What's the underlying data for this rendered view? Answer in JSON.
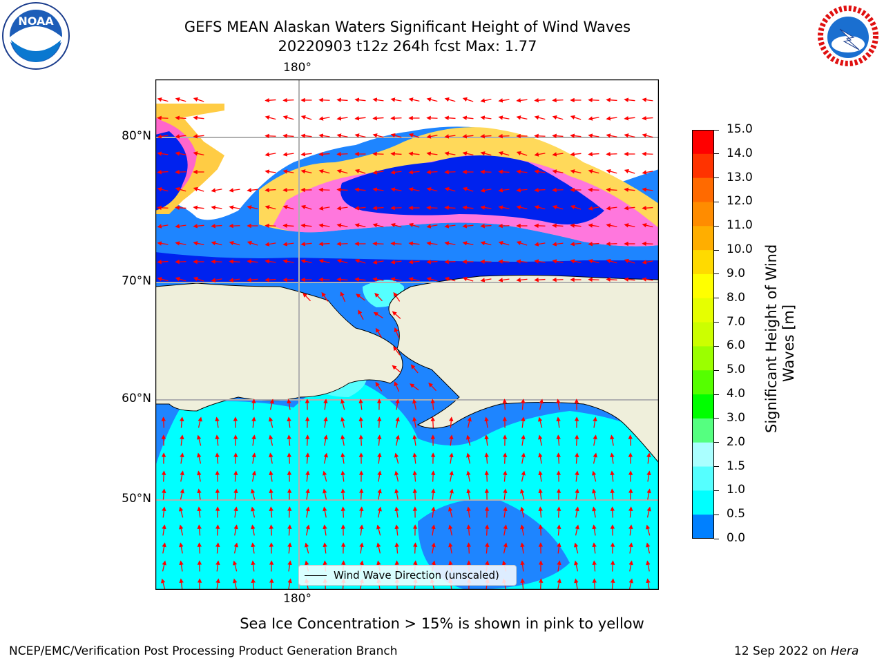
{
  "title": {
    "line1": "GEFS MEAN Alaskan Waters Significant Height of Wind Waves",
    "line2": "20220903 t12z 264h fcst   Max: 1.77"
  },
  "logos": {
    "left": "noaa-logo",
    "right": "national-weather-service-logo"
  },
  "map": {
    "lon_labels": {
      "top": "180°",
      "bottom": "180°"
    },
    "lat_labels": [
      "80°N",
      "70°N",
      "60°N",
      "50°N"
    ],
    "colors": {
      "land": "#efefdb",
      "ocean_low": "#0060ff",
      "ocean_mid": "#1e90ff",
      "ocean_high": "#00ffff",
      "ice_pink": "#ff88e6",
      "ice_yellow": "#ffe400",
      "arrow": "#ff0000"
    },
    "legend": {
      "label": "Wind Wave Direction (unscaled)"
    }
  },
  "colorbar": {
    "label_line1": "Significant Height of Wind",
    "label_line2": "Waves [m]",
    "ticks": [
      "15.0",
      "14.0",
      "13.0",
      "12.0",
      "11.0",
      "10.0",
      "9.0",
      "8.0",
      "7.0",
      "6.0",
      "5.0",
      "4.0",
      "3.0",
      "2.0",
      "1.5",
      "1.0",
      "0.5",
      "0.0"
    ],
    "colors": [
      "#ff0000",
      "#ff3300",
      "#ff6a00",
      "#ff8c00",
      "#ffae00",
      "#ffda00",
      "#ffff00",
      "#e6ff00",
      "#ccff00",
      "#9bff00",
      "#55ff00",
      "#00ff00",
      "#55ff80",
      "#aaffff",
      "#55ffff",
      "#00ffff",
      "#0080ff",
      "#0000ff"
    ]
  },
  "caption": "Sea Ice Concentration > 15% is shown in pink to yellow",
  "footer": {
    "left": "NCEP/EMC/Verification Post Processing Product Generation Branch",
    "right_date": "12 Sep 2022 on ",
    "right_host": "Hera"
  }
}
